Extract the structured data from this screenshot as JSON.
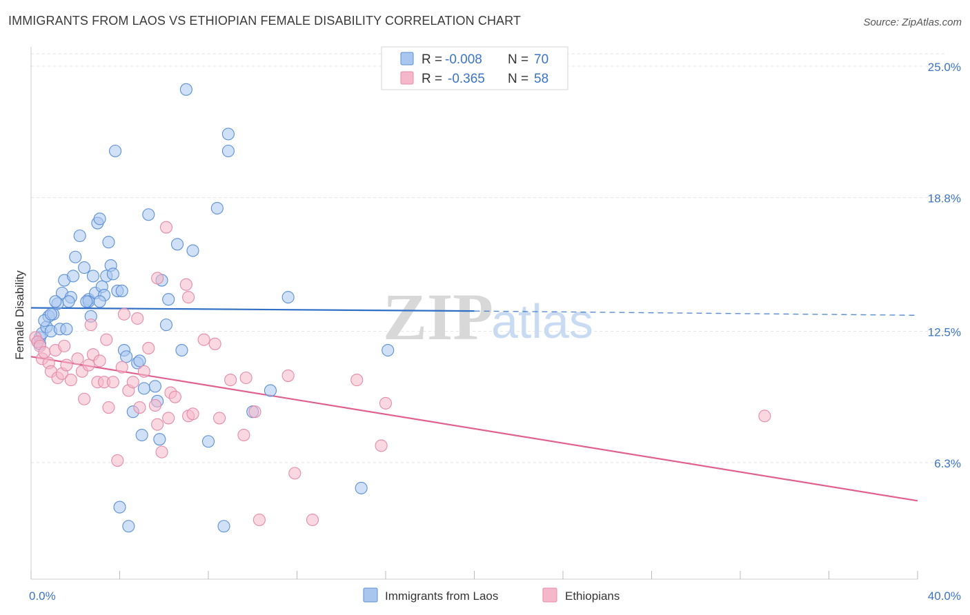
{
  "title": "IMMIGRANTS FROM LAOS VS ETHIOPIAN FEMALE DISABILITY CORRELATION CHART",
  "source": "Source: ZipAtlas.com",
  "watermark": {
    "bold": "ZIP",
    "light": "atlas"
  },
  "colors": {
    "blue_fill": "#a9c6ee",
    "blue_stroke": "#5b8fd6",
    "blue_line": "#2f6fc6",
    "pink_fill": "#f5b8cb",
    "pink_stroke": "#e58aa8",
    "pink_line": "#e0608f",
    "tick_text": "#3b73c6",
    "grid": "#e2e2e2"
  },
  "stats_legend": [
    {
      "r_label": "R =",
      "r_value": "-0.008",
      "n_label": "N =",
      "n_value": "70",
      "series": "Immigrants from Laos"
    },
    {
      "r_label": "R =",
      "r_value": "-0.365",
      "n_label": "N =",
      "n_value": "58",
      "series": "Ethiopians"
    }
  ],
  "chart_data": {
    "type": "scatter",
    "title": "IMMIGRANTS FROM LAOS VS ETHIOPIAN FEMALE DISABILITY CORRELATION CHART",
    "xlabel": "",
    "ylabel": "Female Disability",
    "xlim": [
      0,
      40
    ],
    "ylim": [
      0,
      25.9
    ],
    "x_tick_labels": [
      {
        "value": 0,
        "label": "0.0%"
      },
      {
        "value": 40,
        "label": "40.0%"
      }
    ],
    "y_tick_labels": [
      {
        "value": 6.3,
        "label": "6.3%"
      },
      {
        "value": 12.5,
        "label": "12.5%"
      },
      {
        "value": 18.8,
        "label": "18.8%"
      },
      {
        "value": 25.0,
        "label": "25.0%"
      }
    ],
    "x_minor_ticks": [
      0,
      4,
      8,
      12,
      16,
      20,
      24,
      28,
      32,
      36,
      40
    ],
    "grid": true,
    "legend_position": "bottom-center",
    "series": [
      {
        "name": "Immigrants from Laos",
        "color": "blue",
        "trend": {
          "x0": 0,
          "y0": 13.6,
          "x1": 20,
          "y1": 13.45,
          "dashed_to_x": 40,
          "dashed_to_y": 13.25
        },
        "points": [
          [
            0.3,
            12.0
          ],
          [
            0.4,
            12.2
          ],
          [
            0.5,
            12.4
          ],
          [
            0.4,
            11.9
          ],
          [
            0.7,
            12.7
          ],
          [
            0.8,
            13.2
          ],
          [
            0.6,
            13.0
          ],
          [
            0.9,
            12.5
          ],
          [
            1.0,
            13.3
          ],
          [
            1.2,
            13.8
          ],
          [
            1.4,
            14.3
          ],
          [
            1.5,
            14.9
          ],
          [
            1.8,
            14.1
          ],
          [
            1.9,
            15.1
          ],
          [
            2.0,
            16.0
          ],
          [
            2.2,
            17.0
          ],
          [
            2.4,
            15.5
          ],
          [
            2.6,
            14.0
          ],
          [
            2.7,
            13.2
          ],
          [
            2.8,
            15.1
          ],
          [
            2.9,
            14.3
          ],
          [
            3.0,
            17.6
          ],
          [
            3.1,
            17.8
          ],
          [
            3.2,
            14.6
          ],
          [
            3.4,
            15.1
          ],
          [
            3.5,
            16.7
          ],
          [
            3.6,
            15.6
          ],
          [
            3.8,
            21.0
          ],
          [
            3.9,
            14.4
          ],
          [
            4.1,
            14.4
          ],
          [
            4.2,
            11.6
          ],
          [
            4.3,
            11.3
          ],
          [
            4.6,
            8.7
          ],
          [
            4.8,
            11.0
          ],
          [
            5.0,
            7.6
          ],
          [
            5.1,
            9.8
          ],
          [
            5.3,
            18.0
          ],
          [
            5.7,
            9.2
          ],
          [
            5.8,
            7.4
          ],
          [
            5.9,
            14.9
          ],
          [
            6.1,
            12.8
          ],
          [
            6.2,
            14.0
          ],
          [
            6.6,
            16.6
          ],
          [
            6.8,
            11.6
          ],
          [
            7.0,
            23.9
          ],
          [
            7.3,
            16.3
          ],
          [
            8.0,
            7.3
          ],
          [
            8.4,
            18.3
          ],
          [
            8.7,
            3.3
          ],
          [
            8.9,
            21.8
          ],
          [
            8.9,
            21.0
          ],
          [
            10.0,
            8.7
          ],
          [
            10.8,
            9.7
          ],
          [
            11.6,
            14.1
          ],
          [
            14.9,
            5.1
          ],
          [
            16.1,
            11.6
          ],
          [
            4.0,
            4.2
          ],
          [
            4.4,
            3.3
          ],
          [
            1.3,
            12.6
          ],
          [
            2.6,
            13.9
          ],
          [
            3.3,
            14.2
          ],
          [
            1.1,
            13.9
          ],
          [
            1.7,
            13.9
          ],
          [
            3.7,
            15.2
          ],
          [
            0.9,
            13.3
          ],
          [
            1.6,
            12.6
          ],
          [
            2.5,
            13.9
          ],
          [
            4.9,
            11.1
          ],
          [
            3.1,
            13.9
          ],
          [
            5.6,
            9.9
          ]
        ]
      },
      {
        "name": "Ethiopians",
        "color": "pink",
        "trend": {
          "x0": 0,
          "y0": 11.3,
          "x1": 40,
          "y1": 4.5
        },
        "points": [
          [
            0.2,
            12.2
          ],
          [
            0.3,
            12.0
          ],
          [
            0.4,
            11.8
          ],
          [
            0.5,
            11.2
          ],
          [
            0.6,
            11.5
          ],
          [
            0.8,
            11.0
          ],
          [
            0.9,
            10.6
          ],
          [
            1.1,
            11.6
          ],
          [
            1.2,
            10.3
          ],
          [
            1.4,
            10.5
          ],
          [
            1.5,
            11.8
          ],
          [
            1.6,
            10.9
          ],
          [
            1.8,
            10.2
          ],
          [
            2.1,
            11.2
          ],
          [
            2.3,
            10.6
          ],
          [
            2.4,
            9.3
          ],
          [
            2.6,
            10.9
          ],
          [
            2.7,
            12.8
          ],
          [
            2.8,
            11.4
          ],
          [
            3.0,
            10.1
          ],
          [
            3.1,
            11.1
          ],
          [
            3.3,
            10.1
          ],
          [
            3.4,
            12.1
          ],
          [
            3.5,
            8.9
          ],
          [
            3.7,
            10.1
          ],
          [
            3.9,
            6.4
          ],
          [
            4.1,
            10.8
          ],
          [
            4.2,
            13.3
          ],
          [
            4.4,
            9.7
          ],
          [
            4.6,
            10.1
          ],
          [
            4.8,
            13.1
          ],
          [
            4.9,
            8.9
          ],
          [
            5.1,
            10.6
          ],
          [
            5.3,
            11.7
          ],
          [
            5.6,
            9.0
          ],
          [
            5.7,
            8.1
          ],
          [
            5.9,
            6.8
          ],
          [
            6.1,
            17.4
          ],
          [
            6.2,
            8.4
          ],
          [
            6.3,
            9.6
          ],
          [
            6.5,
            9.4
          ],
          [
            7.1,
            8.5
          ],
          [
            7.0,
            14.7
          ],
          [
            7.3,
            8.6
          ],
          [
            7.8,
            12.1
          ],
          [
            8.3,
            11.9
          ],
          [
            8.5,
            8.4
          ],
          [
            9.0,
            10.2
          ],
          [
            9.6,
            7.6
          ],
          [
            9.7,
            10.3
          ],
          [
            10.1,
            8.7
          ],
          [
            10.3,
            3.6
          ],
          [
            11.6,
            10.4
          ],
          [
            11.9,
            5.8
          ],
          [
            12.7,
            3.6
          ],
          [
            14.7,
            10.2
          ],
          [
            15.8,
            7.1
          ],
          [
            16.0,
            9.1
          ]
        ]
      }
    ]
  },
  "extra_points": {
    "ethiopians_far": [
      33.1,
      8.5
    ],
    "ethiopians_upper": [
      5.7,
      15.0
    ],
    "ethiopians_top": [
      7.1,
      14.1
    ]
  }
}
